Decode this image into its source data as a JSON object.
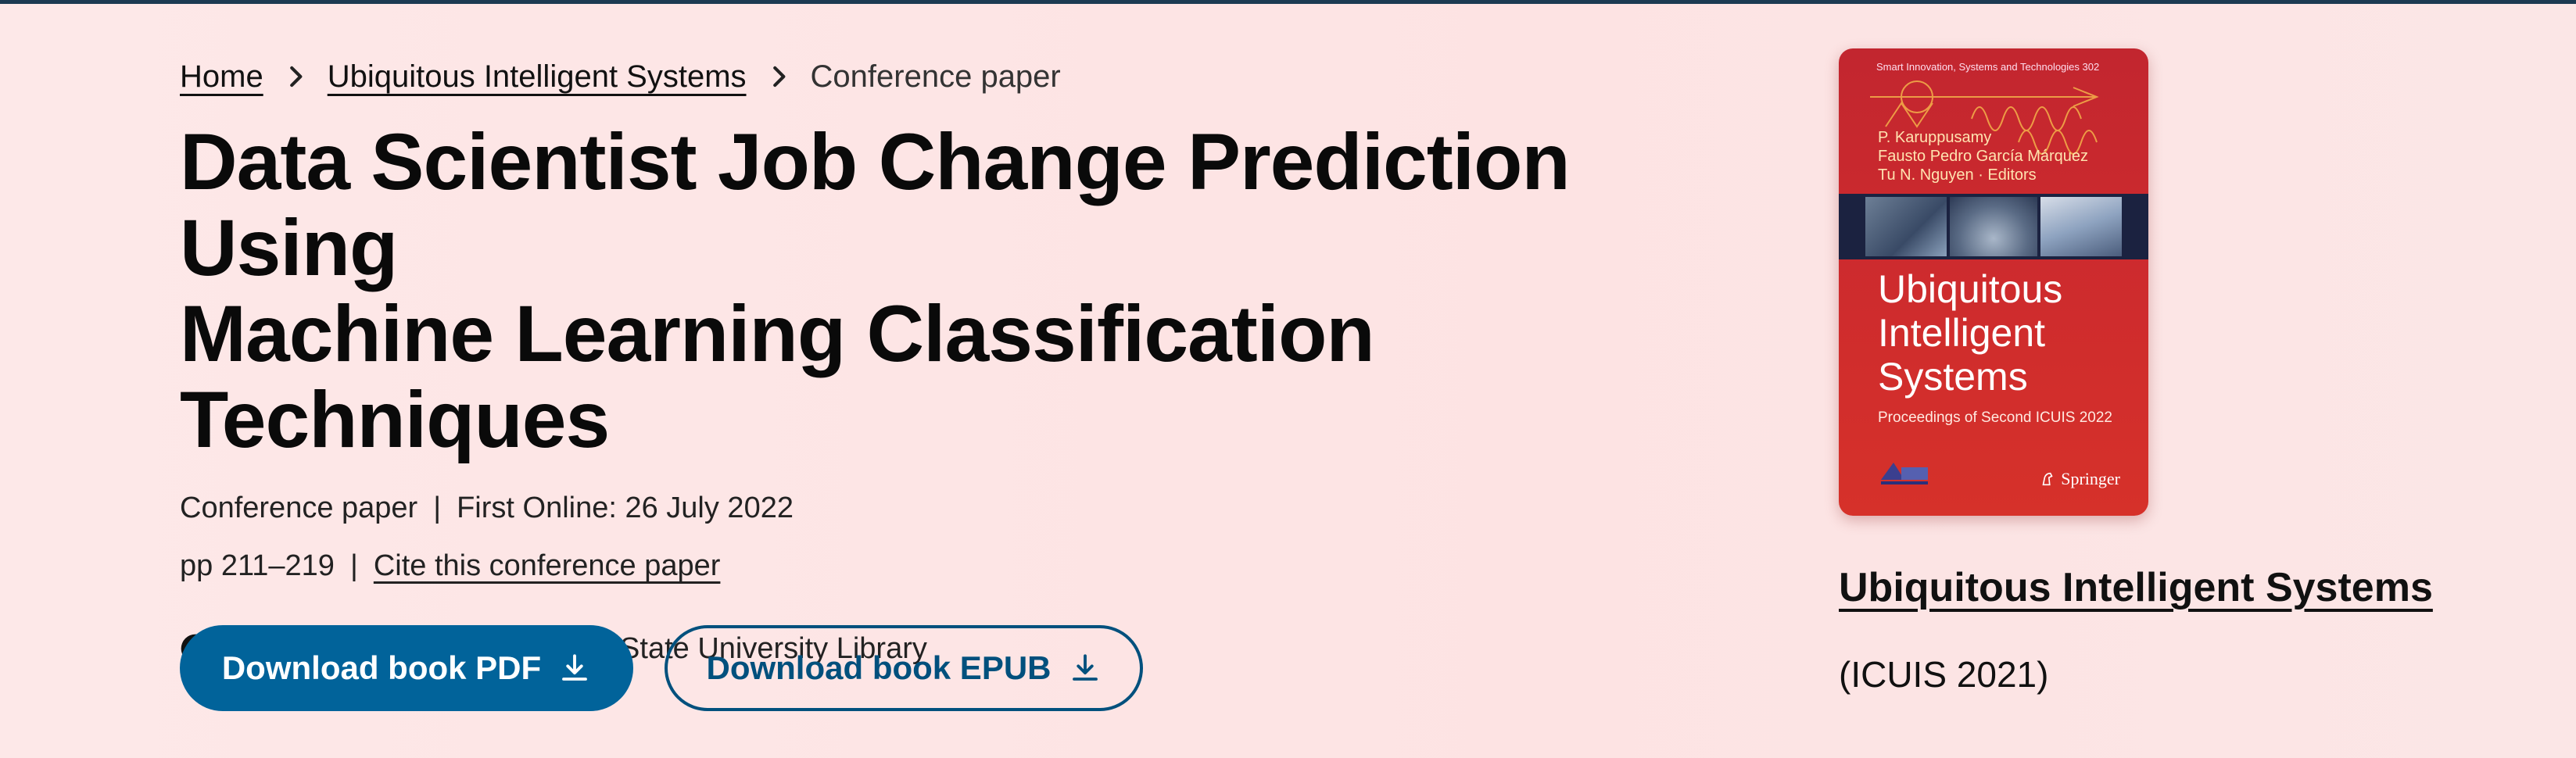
{
  "breadcrumb": {
    "items": [
      {
        "label": "Home"
      },
      {
        "label": "Ubiquitous Intelligent Systems"
      },
      {
        "label": "Conference paper"
      }
    ]
  },
  "title_lines": [
    "Data Scientist Job Change Prediction Using",
    "Machine Learning Classification Techniques"
  ],
  "meta": {
    "type": "Conference paper",
    "separator": "|",
    "first_online": "First Online: 26 July 2022",
    "pages": "pp 211–219",
    "cite_label": "Cite this conference paper"
  },
  "access": {
    "text": "Access provided by San Jose State University Library",
    "icon": "check-circle-icon"
  },
  "buttons": {
    "pdf_label": "Download book PDF",
    "epub_label": "Download book EPUB",
    "icon": "download-icon"
  },
  "book_cover": {
    "series": "Smart Innovation, Systems and Technologies 302",
    "editors": [
      "P. Karuppusamy",
      "Fausto Pedro García Márquez",
      "Tu N. Nguyen · Editors"
    ],
    "title_lines": [
      "Ubiquitous",
      "Intelligent",
      "Systems"
    ],
    "subtitle": "Proceedings of Second ICUIS 2022",
    "publisher": "Springer"
  },
  "book": {
    "name": "Ubiquitous Intelligent Systems",
    "conference": "(ICUIS 2021)"
  },
  "colors": {
    "primary_button": "#01639a",
    "outline_button": "#01507d",
    "cover_red": "#cc2a2e"
  }
}
